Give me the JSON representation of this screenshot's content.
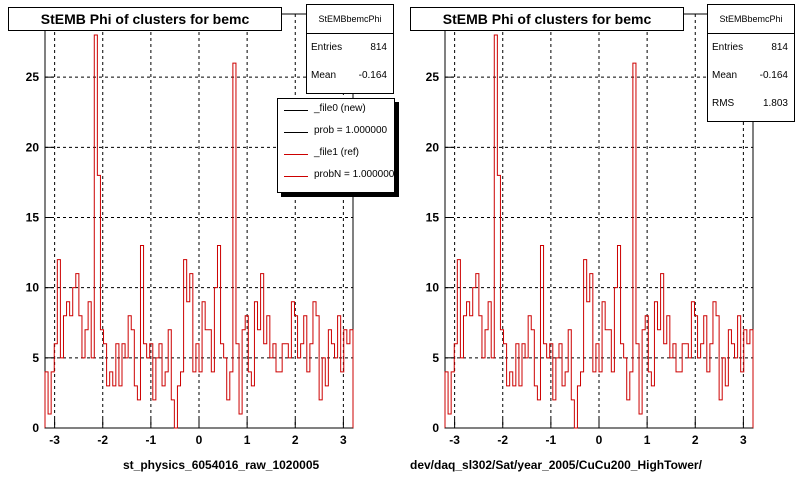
{
  "chart_data": [
    {
      "type": "histogram",
      "title": "StEMB Phi of clusters for bemc",
      "xlabel": "st_physics_6054016_raw_1020005",
      "xlim": [
        -3.2,
        3.2
      ],
      "ylim": [
        0,
        29.5
      ],
      "xticks": [
        -3,
        -2,
        -1,
        0,
        1,
        2,
        3
      ],
      "yticks": [
        0,
        5,
        10,
        15,
        20,
        25
      ],
      "grid": true,
      "stats": {
        "name": "StEMBbemcPhi",
        "entries_label": "Entries",
        "entries": "814",
        "mean_label": "Mean",
        "mean": "-0.164"
      },
      "legend": {
        "placement": "top-right",
        "entries": [
          {
            "label": "_file0 (new)",
            "color": "#000000"
          },
          {
            "label": "prob = 1.000000",
            "color": "#000000"
          },
          {
            "label": "_file1 (ref)",
            "color": "#cc0000"
          },
          {
            "label": "probN = 1.000000",
            "color": "#cc0000"
          }
        ]
      },
      "series": [
        {
          "color": "#cc0000",
          "bin_edges": [
            -3.2,
            3.2
          ],
          "values": [
            4,
            1,
            4,
            6,
            12,
            5,
            8,
            9,
            8,
            10,
            11,
            8,
            5,
            7,
            9,
            5,
            28,
            18,
            7,
            6,
            3,
            4,
            3,
            6,
            3,
            6,
            5,
            8,
            7,
            3,
            2,
            13,
            6,
            5,
            6,
            2,
            5,
            6,
            3,
            4,
            7,
            2,
            0,
            3,
            4,
            12,
            9,
            11,
            4,
            6,
            4,
            9,
            7,
            7,
            4,
            10,
            13,
            6,
            5,
            2,
            4,
            26,
            6,
            1,
            7,
            8,
            4,
            3,
            9,
            7,
            11,
            6,
            8,
            5,
            6,
            4,
            4,
            6,
            6,
            5,
            9,
            8,
            5,
            6,
            8,
            4,
            6,
            9,
            8,
            2,
            5,
            3,
            7,
            6,
            5,
            8,
            4,
            7,
            6,
            7
          ]
        }
      ]
    },
    {
      "type": "histogram",
      "title": "StEMB Phi of clusters for bemc",
      "xlabel": "dev/daq_sl302/Sat/year_2005/CuCu200_HighTower/",
      "xlim": [
        -3.2,
        3.2
      ],
      "ylim": [
        0,
        29.5
      ],
      "xticks": [
        -3,
        -2,
        -1,
        0,
        1,
        2,
        3
      ],
      "yticks": [
        0,
        5,
        10,
        15,
        20,
        25
      ],
      "grid": true,
      "stats": {
        "name": "StEMBbemcPhi",
        "entries_label": "Entries",
        "entries": "814",
        "mean_label": "Mean",
        "mean": "-0.164",
        "rms_label": "RMS",
        "rms": "1.803"
      },
      "series": [
        {
          "color": "#cc0000",
          "bin_edges": [
            -3.2,
            3.2
          ],
          "values": [
            4,
            1,
            4,
            6,
            12,
            5,
            8,
            9,
            8,
            10,
            11,
            8,
            5,
            7,
            9,
            5,
            28,
            18,
            7,
            6,
            3,
            4,
            3,
            6,
            3,
            6,
            5,
            8,
            7,
            3,
            2,
            13,
            6,
            5,
            6,
            2,
            5,
            6,
            3,
            4,
            7,
            2,
            0,
            3,
            4,
            12,
            9,
            11,
            4,
            6,
            4,
            9,
            7,
            7,
            4,
            10,
            13,
            6,
            5,
            2,
            4,
            26,
            6,
            1,
            7,
            8,
            4,
            3,
            9,
            7,
            11,
            6,
            8,
            5,
            6,
            4,
            4,
            6,
            6,
            5,
            9,
            8,
            5,
            6,
            8,
            4,
            6,
            9,
            8,
            2,
            5,
            3,
            7,
            6,
            5,
            8,
            4,
            7,
            6,
            7
          ]
        }
      ]
    }
  ]
}
